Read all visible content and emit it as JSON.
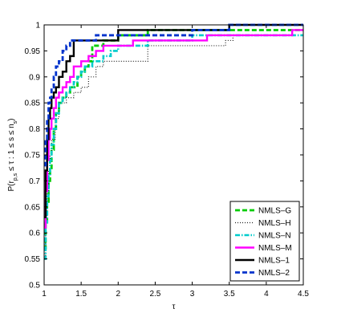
{
  "chart_data": {
    "type": "line",
    "xlabel": "τ",
    "ylabel": "P(r_{p,s} ≤ τ : 1 ≤ s ≤ n_s)",
    "xlim": [
      1,
      4.5
    ],
    "ylim": [
      0.5,
      1.0
    ],
    "xticks": [
      1,
      1.5,
      2,
      2.5,
      3,
      3.5,
      4,
      4.5
    ],
    "yticks": [
      0.5,
      0.55,
      0.6,
      0.65,
      0.7,
      0.75,
      0.8,
      0.85,
      0.9,
      0.95,
      1
    ],
    "xtick_labels": [
      "1",
      "1.5",
      "2",
      "2.5",
      "3",
      "3.5",
      "4",
      "4.5"
    ],
    "ytick_labels": [
      "0.5",
      "0.55",
      "0.6",
      "0.65",
      "0.7",
      "0.75",
      "0.8",
      "0.85",
      "0.9",
      "0.95",
      "1"
    ],
    "grid": false,
    "legend_position": "bottom-right",
    "series": [
      {
        "name": "NMLS–G",
        "color": "#00cc00",
        "dash": "dashed",
        "x": [
          1.0,
          1.02,
          1.04,
          1.06,
          1.08,
          1.1,
          1.13,
          1.16,
          1.2,
          1.25,
          1.3,
          1.35,
          1.4,
          1.45,
          1.5,
          1.55,
          1.6,
          1.65,
          1.7,
          1.8,
          2.0,
          2.2,
          2.4,
          3.5,
          4.5
        ],
        "y": [
          0.57,
          0.62,
          0.66,
          0.7,
          0.72,
          0.76,
          0.8,
          0.83,
          0.85,
          0.86,
          0.87,
          0.88,
          0.88,
          0.9,
          0.91,
          0.92,
          0.93,
          0.96,
          0.96,
          0.97,
          0.98,
          0.98,
          0.99,
          0.99,
          0.99
        ]
      },
      {
        "name": "NMLS–H",
        "color": "#222222",
        "dash": "dotted",
        "x": [
          1.0,
          1.02,
          1.04,
          1.06,
          1.08,
          1.1,
          1.15,
          1.2,
          1.3,
          1.4,
          1.5,
          1.6,
          1.7,
          1.8,
          1.9,
          2.0,
          2.3,
          2.4,
          2.45,
          3.45,
          3.55,
          3.8,
          4.0,
          4.35,
          4.5
        ],
        "y": [
          0.55,
          0.62,
          0.68,
          0.72,
          0.75,
          0.78,
          0.82,
          0.85,
          0.86,
          0.87,
          0.88,
          0.9,
          0.92,
          0.93,
          0.93,
          0.93,
          0.93,
          0.96,
          0.96,
          0.97,
          0.98,
          0.98,
          0.98,
          0.99,
          1.0
        ]
      },
      {
        "name": "NMLS–N",
        "color": "#00cccc",
        "dash": "dashdot",
        "x": [
          1.0,
          1.02,
          1.04,
          1.06,
          1.08,
          1.1,
          1.13,
          1.16,
          1.2,
          1.25,
          1.3,
          1.35,
          1.4,
          1.45,
          1.5,
          1.55,
          1.65,
          1.7,
          1.8,
          1.9,
          2.0,
          2.4,
          3.0,
          4.5
        ],
        "y": [
          0.55,
          0.62,
          0.67,
          0.71,
          0.74,
          0.77,
          0.8,
          0.83,
          0.85,
          0.86,
          0.87,
          0.88,
          0.89,
          0.9,
          0.91,
          0.92,
          0.93,
          0.93,
          0.94,
          0.95,
          0.96,
          0.97,
          0.98,
          0.98
        ]
      },
      {
        "name": "NMLS–M",
        "color": "#ff00ff",
        "dash": "solid",
        "x": [
          1.0,
          1.02,
          1.04,
          1.06,
          1.08,
          1.1,
          1.13,
          1.16,
          1.2,
          1.25,
          1.3,
          1.35,
          1.4,
          1.5,
          1.6,
          1.7,
          1.8,
          2.0,
          2.2,
          2.4,
          3.2,
          3.5,
          4.35,
          4.5
        ],
        "y": [
          0.61,
          0.68,
          0.74,
          0.78,
          0.8,
          0.82,
          0.84,
          0.86,
          0.87,
          0.88,
          0.89,
          0.9,
          0.92,
          0.93,
          0.94,
          0.95,
          0.96,
          0.96,
          0.97,
          0.97,
          0.98,
          0.98,
          0.99,
          0.99
        ]
      },
      {
        "name": "NMLS–1",
        "color": "#000000",
        "dash": "solid",
        "x": [
          1.0,
          1.02,
          1.04,
          1.06,
          1.08,
          1.1,
          1.13,
          1.16,
          1.2,
          1.25,
          1.3,
          1.35,
          1.4,
          1.5,
          1.7,
          1.8,
          2.0,
          2.5,
          3.0,
          3.5,
          4.5
        ],
        "y": [
          0.63,
          0.72,
          0.78,
          0.82,
          0.84,
          0.86,
          0.87,
          0.88,
          0.9,
          0.91,
          0.93,
          0.94,
          0.97,
          0.97,
          0.97,
          0.97,
          0.99,
          0.99,
          0.99,
          1.0,
          1.0
        ]
      },
      {
        "name": "NMLS–2",
        "color": "#0033cc",
        "dash": "dashed",
        "x": [
          1.0,
          1.02,
          1.04,
          1.06,
          1.08,
          1.1,
          1.13,
          1.16,
          1.2,
          1.25,
          1.3,
          1.35,
          1.4,
          1.5,
          1.7,
          2.0,
          2.5,
          3.0,
          3.5,
          4.5
        ],
        "y": [
          0.73,
          0.78,
          0.82,
          0.85,
          0.86,
          0.88,
          0.9,
          0.92,
          0.93,
          0.95,
          0.96,
          0.97,
          0.97,
          0.97,
          0.98,
          0.98,
          0.98,
          0.99,
          1.0,
          1.0
        ]
      }
    ]
  }
}
